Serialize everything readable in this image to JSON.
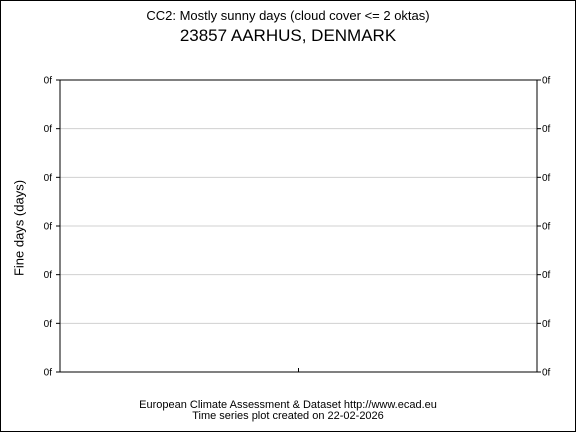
{
  "chart_data": {
    "type": "line",
    "title": "CC2: Mostly sunny days (cloud cover <= 2 oktas)",
    "subtitle": "23857 AARHUS, DENMARK",
    "ylabel": "Fine days (days)",
    "xlabel": "",
    "yticks": [
      "0f",
      "0f",
      "0f",
      "0f",
      "0f",
      "0f",
      "0f"
    ],
    "grid": true,
    "series": []
  },
  "footer": {
    "line1": "European Climate Assessment & Dataset  http://www.ecad.eu",
    "line2": "Time series plot created on 22-02-2026"
  }
}
